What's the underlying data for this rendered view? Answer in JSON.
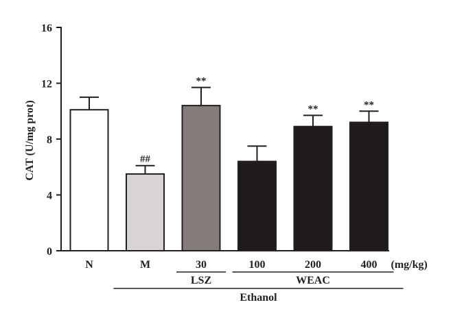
{
  "chart_data": {
    "type": "bar",
    "ylabel": "CAT (U/mg prot)",
    "ylim": [
      0,
      16
    ],
    "yticks": [
      0,
      4,
      8,
      12,
      16
    ],
    "unit_label": "(mg/kg)",
    "categories": [
      "N",
      "M",
      "30",
      "100",
      "200",
      "400"
    ],
    "values": [
      10.1,
      5.5,
      10.4,
      6.4,
      8.9,
      9.2
    ],
    "errors": [
      0.9,
      0.6,
      1.3,
      1.1,
      0.8,
      0.8
    ],
    "annotations": [
      "",
      "##",
      "**",
      "",
      "**",
      "**"
    ],
    "bar_colors": [
      "#ffffff",
      "#d9d4d4",
      "#847c79",
      "#201c1b",
      "#201c1b",
      "#201c1b"
    ],
    "group_labels": [
      {
        "label": "LSZ",
        "from": 2,
        "to": 2
      },
      {
        "label": "WEAC",
        "from": 3,
        "to": 5
      }
    ],
    "outer_group_label": {
      "label": "Ethanol",
      "from": 1,
      "to": 5
    }
  }
}
